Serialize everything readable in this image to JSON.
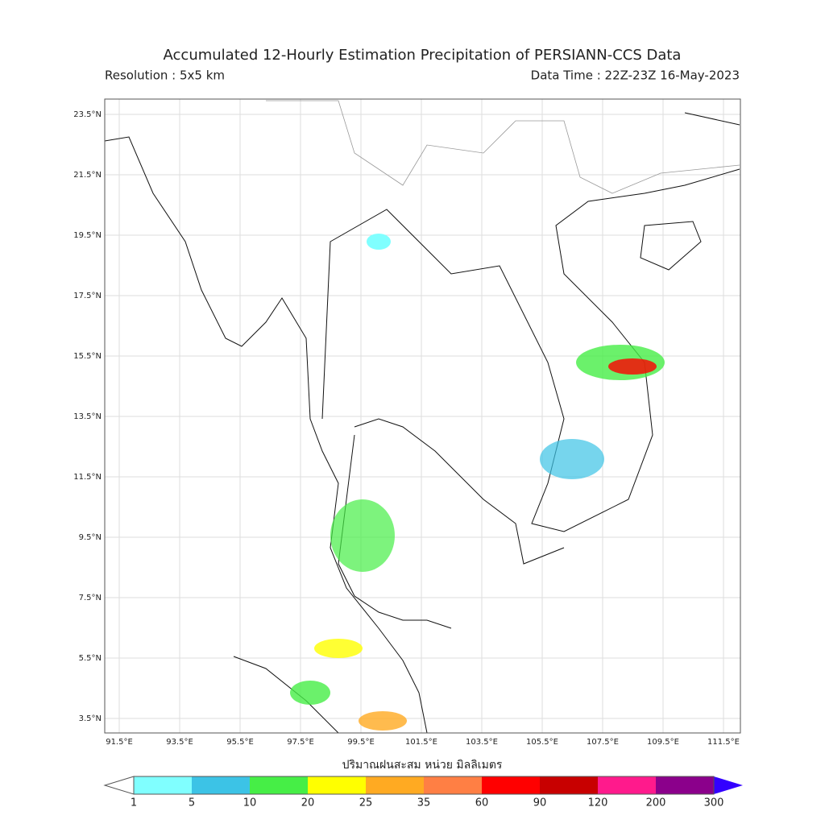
{
  "header": {
    "title": "Accumulated 12-Hourly Estimation Precipitation of PERSIANN-CCS Data",
    "resolution": "Resolution : 5x5 km",
    "data_time": "Data Time : 22Z-23Z 16-May-2023"
  },
  "map": {
    "lat_labels": [
      "23.5°N",
      "21.5°N",
      "19.5°N",
      "17.5°N",
      "15.5°N",
      "13.5°N",
      "11.5°N",
      "9.5°N",
      "7.5°N",
      "5.5°N",
      "3.5°N"
    ],
    "lon_labels": [
      "91.5°E",
      "93.5°E",
      "95.5°E",
      "97.5°E",
      "99.5°E",
      "101.5°E",
      "103.5°E",
      "105.5°E",
      "107.5°E",
      "109.5°E",
      "111.5°E"
    ]
  },
  "legend": {
    "title": "ปริมาณฝนสะสม หน่วย มิลลิเมตร",
    "ticks": [
      "1",
      "5",
      "10",
      "20",
      "25",
      "35",
      "60",
      "90",
      "120",
      "200",
      "300"
    ],
    "colors": [
      "#80ffff",
      "#3cc3e6",
      "#46ee46",
      "#ffff00",
      "#ffaa22",
      "#ff7f44",
      "#ff0000",
      "#c80000",
      "#ff1a8c",
      "#8b008b"
    ],
    "over_color": "#3300ff",
    "under_color": "#ffffff"
  }
}
